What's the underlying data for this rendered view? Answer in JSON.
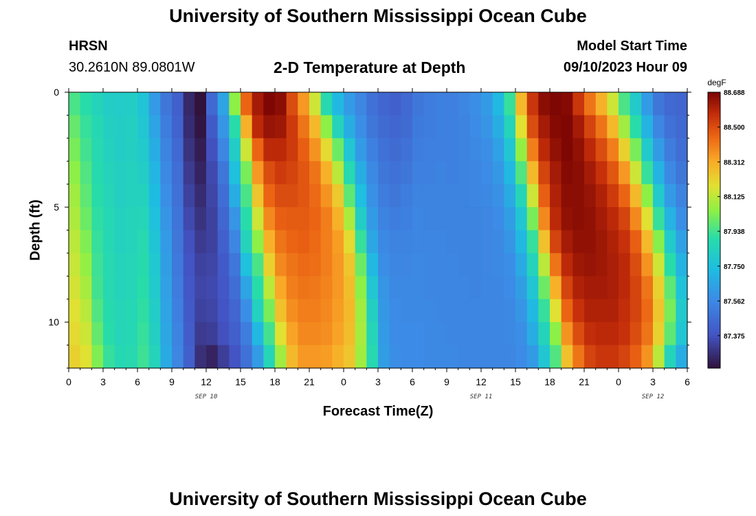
{
  "page": {
    "title_top": "University of Southern Mississippi Ocean Cube",
    "title_bottom": "University of Southern Mississippi Ocean Cube",
    "station": "HRSN",
    "coords": "30.2610N  89.0801W",
    "plot_title": "2-D Temperature at Depth",
    "model_label": "Model Start Time",
    "model_time": "09/10/2023 Hour 09"
  },
  "chart_data": {
    "type": "heatmap",
    "title": "2-D Temperature at Depth",
    "xlabel": "Forecast Time(Z)",
    "ylabel": "Depth (ft)",
    "x_unit": "hours from 2023-09-10 00Z",
    "xlim": [
      0,
      54
    ],
    "ylim": [
      0,
      12
    ],
    "y_inverted": true,
    "x_tick_values": [
      0,
      3,
      6,
      9,
      12,
      15,
      18,
      21,
      24,
      27,
      30,
      33,
      36,
      39,
      42,
      45,
      48,
      51,
      54
    ],
    "x_tick_labels": [
      "0",
      "3",
      "6",
      "9",
      "12",
      "15",
      "18",
      "21",
      "0",
      "3",
      "6",
      "9",
      "12",
      "15",
      "18",
      "21",
      "0",
      "3",
      "6"
    ],
    "y_tick_values": [
      0,
      5,
      10
    ],
    "y_tick_labels": [
      "0",
      "5",
      "10"
    ],
    "date_labels": [
      {
        "x": 12,
        "label": "SEP 10"
      },
      {
        "x": 36,
        "label": "SEP 11"
      },
      {
        "x": 51,
        "label": "SEP 12"
      }
    ],
    "colorbar": {
      "unit": "degF",
      "min": 87.2,
      "max": 88.688,
      "tick_values": [
        88.688,
        88.5,
        88.312,
        88.125,
        87.938,
        87.75,
        87.562,
        87.375
      ],
      "tick_labels": [
        "88.688",
        "88.500",
        "88.312",
        "88.125",
        "87.938",
        "87.750",
        "87.562",
        "87.375"
      ]
    },
    "grid": false,
    "depth_levels": [
      0.5,
      1.5,
      2.5,
      3.5,
      4.5,
      5.5,
      6.5,
      7.5,
      8.5,
      9.5,
      10.5,
      11.5
    ],
    "time_step_hours": 1,
    "profiles": [
      {
        "time": 0,
        "temps": [
          87.95,
          87.99,
          88.02,
          88.05,
          88.08,
          88.1,
          88.12,
          88.14,
          88.16,
          88.18,
          88.2,
          88.22
        ]
      },
      {
        "time": 1,
        "temps": [
          87.9,
          87.92,
          87.94,
          87.96,
          87.98,
          88.0,
          88.03,
          88.06,
          88.09,
          88.12,
          88.15,
          88.18
        ]
      },
      {
        "time": 2,
        "temps": [
          87.85,
          87.87,
          87.88,
          87.89,
          87.9,
          87.91,
          87.92,
          87.93,
          87.94,
          87.96,
          87.99,
          88.03
        ]
      },
      {
        "time": 3,
        "temps": [
          87.82,
          87.83,
          87.84,
          87.85,
          87.86,
          87.87,
          87.87,
          87.88,
          87.88,
          87.89,
          87.9,
          87.92
        ]
      },
      {
        "time": 4,
        "temps": [
          87.81,
          87.82,
          87.82,
          87.83,
          87.83,
          87.84,
          87.84,
          87.85,
          87.85,
          87.86,
          87.86,
          87.87
        ]
      },
      {
        "time": 5,
        "temps": [
          87.82,
          87.83,
          87.83,
          87.84,
          87.84,
          87.85,
          87.85,
          87.86,
          87.86,
          87.87,
          87.87,
          87.88
        ]
      },
      {
        "time": 6,
        "temps": [
          87.77,
          87.78,
          87.8,
          87.82,
          87.84,
          87.86,
          87.88,
          87.89,
          87.9,
          87.91,
          87.92,
          87.93
        ]
      },
      {
        "time": 7,
        "temps": [
          87.62,
          87.65,
          87.68,
          87.71,
          87.73,
          87.75,
          87.77,
          87.79,
          87.8,
          87.82,
          87.83,
          87.85
        ]
      },
      {
        "time": 8,
        "temps": [
          87.5,
          87.52,
          87.54,
          87.56,
          87.58,
          87.6,
          87.62,
          87.63,
          87.64,
          87.65,
          87.66,
          87.67
        ]
      },
      {
        "time": 9,
        "temps": [
          87.42,
          87.43,
          87.45,
          87.47,
          87.48,
          87.49,
          87.5,
          87.51,
          87.52,
          87.53,
          87.54,
          87.55
        ]
      },
      {
        "time": 10,
        "temps": [
          87.26,
          87.27,
          87.29,
          87.31,
          87.33,
          87.35,
          87.37,
          87.38,
          87.39,
          87.4,
          87.41,
          87.42
        ]
      },
      {
        "time": 11,
        "temps": [
          87.2,
          87.21,
          87.23,
          87.25,
          87.27,
          87.29,
          87.31,
          87.33,
          87.34,
          87.33,
          87.31,
          87.28
        ]
      },
      {
        "time": 12,
        "temps": [
          87.45,
          87.4,
          87.37,
          87.35,
          87.34,
          87.33,
          87.33,
          87.34,
          87.35,
          87.34,
          87.32,
          87.25
        ]
      },
      {
        "time": 13,
        "temps": [
          87.65,
          87.6,
          87.55,
          87.5,
          87.47,
          87.44,
          87.42,
          87.4,
          87.39,
          87.38,
          87.37,
          87.32
        ]
      },
      {
        "time": 14,
        "temps": [
          88.05,
          87.9,
          87.82,
          87.75,
          87.68,
          87.6,
          87.55,
          87.5,
          87.47,
          87.44,
          87.42,
          87.38
        ]
      },
      {
        "time": 15,
        "temps": [
          88.45,
          88.3,
          88.15,
          88.02,
          87.95,
          87.9,
          87.85,
          87.75,
          87.65,
          87.58,
          87.52,
          87.48
        ]
      },
      {
        "time": 16,
        "temps": [
          88.62,
          88.58,
          88.45,
          88.35,
          88.25,
          88.15,
          88.05,
          87.95,
          87.9,
          87.84,
          87.72,
          87.62
        ]
      },
      {
        "time": 17,
        "temps": [
          88.68,
          88.64,
          88.58,
          88.5,
          88.45,
          88.38,
          88.3,
          88.22,
          88.12,
          88.02,
          87.94,
          87.86
        ]
      },
      {
        "time": 18,
        "temps": [
          88.66,
          88.63,
          88.58,
          88.54,
          88.5,
          88.46,
          88.42,
          88.38,
          88.32,
          88.26,
          88.18,
          88.08
        ]
      },
      {
        "time": 19,
        "temps": [
          88.5,
          88.54,
          88.54,
          88.52,
          88.5,
          88.47,
          88.45,
          88.42,
          88.4,
          88.37,
          88.33,
          88.28
        ]
      },
      {
        "time": 20,
        "temps": [
          88.35,
          88.42,
          88.46,
          88.48,
          88.48,
          88.47,
          88.46,
          88.44,
          88.42,
          88.4,
          88.38,
          88.35
        ]
      },
      {
        "time": 21,
        "temps": [
          88.15,
          88.28,
          88.36,
          88.42,
          88.44,
          88.45,
          88.44,
          88.43,
          88.41,
          88.4,
          88.38,
          88.35
        ]
      },
      {
        "time": 22,
        "temps": [
          87.88,
          88.05,
          88.2,
          88.3,
          88.36,
          88.4,
          88.4,
          88.4,
          88.39,
          88.38,
          88.37,
          88.34
        ]
      },
      {
        "time": 23,
        "temps": [
          87.72,
          87.85,
          88.0,
          88.12,
          88.24,
          88.3,
          88.34,
          88.35,
          88.35,
          88.34,
          88.33,
          88.3
        ]
      },
      {
        "time": 24,
        "temps": [
          87.62,
          87.68,
          87.78,
          87.88,
          87.98,
          88.1,
          88.2,
          88.25,
          88.27,
          88.28,
          88.27,
          88.25
        ]
      },
      {
        "time": 25,
        "temps": [
          87.55,
          87.58,
          87.62,
          87.68,
          87.74,
          87.82,
          87.92,
          88.0,
          88.05,
          88.08,
          88.09,
          88.08
        ]
      },
      {
        "time": 26,
        "temps": [
          87.48,
          87.5,
          87.53,
          87.56,
          87.59,
          87.62,
          87.66,
          87.72,
          87.78,
          87.83,
          87.86,
          87.88
        ]
      },
      {
        "time": 27,
        "temps": [
          87.44,
          87.46,
          87.48,
          87.5,
          87.52,
          87.54,
          87.56,
          87.58,
          87.6,
          87.61,
          87.62,
          87.63
        ]
      },
      {
        "time": 28,
        "temps": [
          87.42,
          87.44,
          87.46,
          87.48,
          87.5,
          87.52,
          87.54,
          87.55,
          87.56,
          87.57,
          87.57,
          87.58
        ]
      },
      {
        "time": 29,
        "temps": [
          87.45,
          87.46,
          87.48,
          87.5,
          87.52,
          87.53,
          87.54,
          87.55,
          87.56,
          87.56,
          87.57,
          87.57
        ]
      },
      {
        "time": 30,
        "temps": [
          87.5,
          87.51,
          87.52,
          87.53,
          87.54,
          87.55,
          87.55,
          87.56,
          87.56,
          87.56,
          87.57,
          87.57
        ]
      },
      {
        "time": 31,
        "temps": [
          87.52,
          87.52,
          87.53,
          87.53,
          87.54,
          87.54,
          87.55,
          87.55,
          87.55,
          87.56,
          87.56,
          87.56
        ]
      },
      {
        "time": 32,
        "temps": [
          87.53,
          87.53,
          87.53,
          87.54,
          87.54,
          87.54,
          87.55,
          87.55,
          87.55,
          87.55,
          87.56,
          87.56
        ]
      },
      {
        "time": 33,
        "temps": [
          87.53,
          87.53,
          87.53,
          87.53,
          87.54,
          87.54,
          87.54,
          87.55,
          87.55,
          87.55,
          87.55,
          87.56
        ]
      },
      {
        "time": 34,
        "temps": [
          87.55,
          87.54,
          87.54,
          87.54,
          87.54,
          87.54,
          87.54,
          87.54,
          87.55,
          87.55,
          87.55,
          87.55
        ]
      },
      {
        "time": 35,
        "temps": [
          87.58,
          87.57,
          87.56,
          87.55,
          87.55,
          87.54,
          87.54,
          87.54,
          87.54,
          87.55,
          87.55,
          87.55
        ]
      },
      {
        "time": 36,
        "temps": [
          87.62,
          87.6,
          87.58,
          87.57,
          87.56,
          87.55,
          87.55,
          87.55,
          87.55,
          87.55,
          87.55,
          87.55
        ]
      },
      {
        "time": 37,
        "temps": [
          87.72,
          87.68,
          87.64,
          87.61,
          87.59,
          87.57,
          87.56,
          87.56,
          87.55,
          87.55,
          87.55,
          87.55
        ]
      },
      {
        "time": 38,
        "temps": [
          87.92,
          87.85,
          87.78,
          87.72,
          87.67,
          87.63,
          87.6,
          87.58,
          87.57,
          87.56,
          87.56,
          87.55
        ]
      },
      {
        "time": 39,
        "temps": [
          88.28,
          88.18,
          88.06,
          87.96,
          87.86,
          87.78,
          87.72,
          87.67,
          87.63,
          87.6,
          87.58,
          87.57
        ]
      },
      {
        "time": 40,
        "temps": [
          88.55,
          88.5,
          88.4,
          88.28,
          88.15,
          88.02,
          87.92,
          87.85,
          87.78,
          87.72,
          87.68,
          87.62
        ]
      },
      {
        "time": 41,
        "temps": [
          88.66,
          88.62,
          88.58,
          88.52,
          88.46,
          88.38,
          88.26,
          88.12,
          88.0,
          87.92,
          87.85,
          87.78
        ]
      },
      {
        "time": 42,
        "temps": [
          88.68,
          88.67,
          88.65,
          88.62,
          88.6,
          88.58,
          88.52,
          88.42,
          88.3,
          88.18,
          88.05,
          87.96
        ]
      },
      {
        "time": 43,
        "temps": [
          88.67,
          88.68,
          88.68,
          88.67,
          88.66,
          88.65,
          88.62,
          88.58,
          88.52,
          88.45,
          88.36,
          88.26
        ]
      },
      {
        "time": 44,
        "temps": [
          88.55,
          88.62,
          88.65,
          88.66,
          88.66,
          88.66,
          88.65,
          88.63,
          88.6,
          88.56,
          88.5,
          88.42
        ]
      },
      {
        "time": 45,
        "temps": [
          88.42,
          88.52,
          88.58,
          88.62,
          88.64,
          88.65,
          88.65,
          88.64,
          88.62,
          88.6,
          88.57,
          88.52
        ]
      },
      {
        "time": 46,
        "temps": [
          88.3,
          88.42,
          88.5,
          88.56,
          88.6,
          88.62,
          88.63,
          88.63,
          88.62,
          88.6,
          88.58,
          88.55
        ]
      },
      {
        "time": 47,
        "temps": [
          88.15,
          88.28,
          88.4,
          88.48,
          88.54,
          88.58,
          88.6,
          88.61,
          88.61,
          88.6,
          88.58,
          88.55
        ]
      },
      {
        "time": 48,
        "temps": [
          87.95,
          88.08,
          88.22,
          88.35,
          88.45,
          88.52,
          88.56,
          88.58,
          88.58,
          88.57,
          88.56,
          88.52
        ]
      },
      {
        "time": 49,
        "temps": [
          87.8,
          87.9,
          88.02,
          88.15,
          88.28,
          88.38,
          88.46,
          88.5,
          88.52,
          88.52,
          88.5,
          88.46
        ]
      },
      {
        "time": 50,
        "temps": [
          87.62,
          87.7,
          87.8,
          87.92,
          88.05,
          88.18,
          88.28,
          88.36,
          88.42,
          88.44,
          88.42,
          88.36
        ]
      },
      {
        "time": 51,
        "temps": [
          87.5,
          87.55,
          87.62,
          87.7,
          87.8,
          87.92,
          88.04,
          88.15,
          88.22,
          88.25,
          88.22,
          88.12
        ]
      },
      {
        "time": 52,
        "temps": [
          87.45,
          87.48,
          87.52,
          87.56,
          87.62,
          87.7,
          87.8,
          87.9,
          87.98,
          88.02,
          87.98,
          87.85
        ]
      },
      {
        "time": 53,
        "temps": [
          87.44,
          87.45,
          87.47,
          87.5,
          87.54,
          87.58,
          87.64,
          87.7,
          87.76,
          87.8,
          87.78,
          87.68
        ]
      }
    ]
  }
}
